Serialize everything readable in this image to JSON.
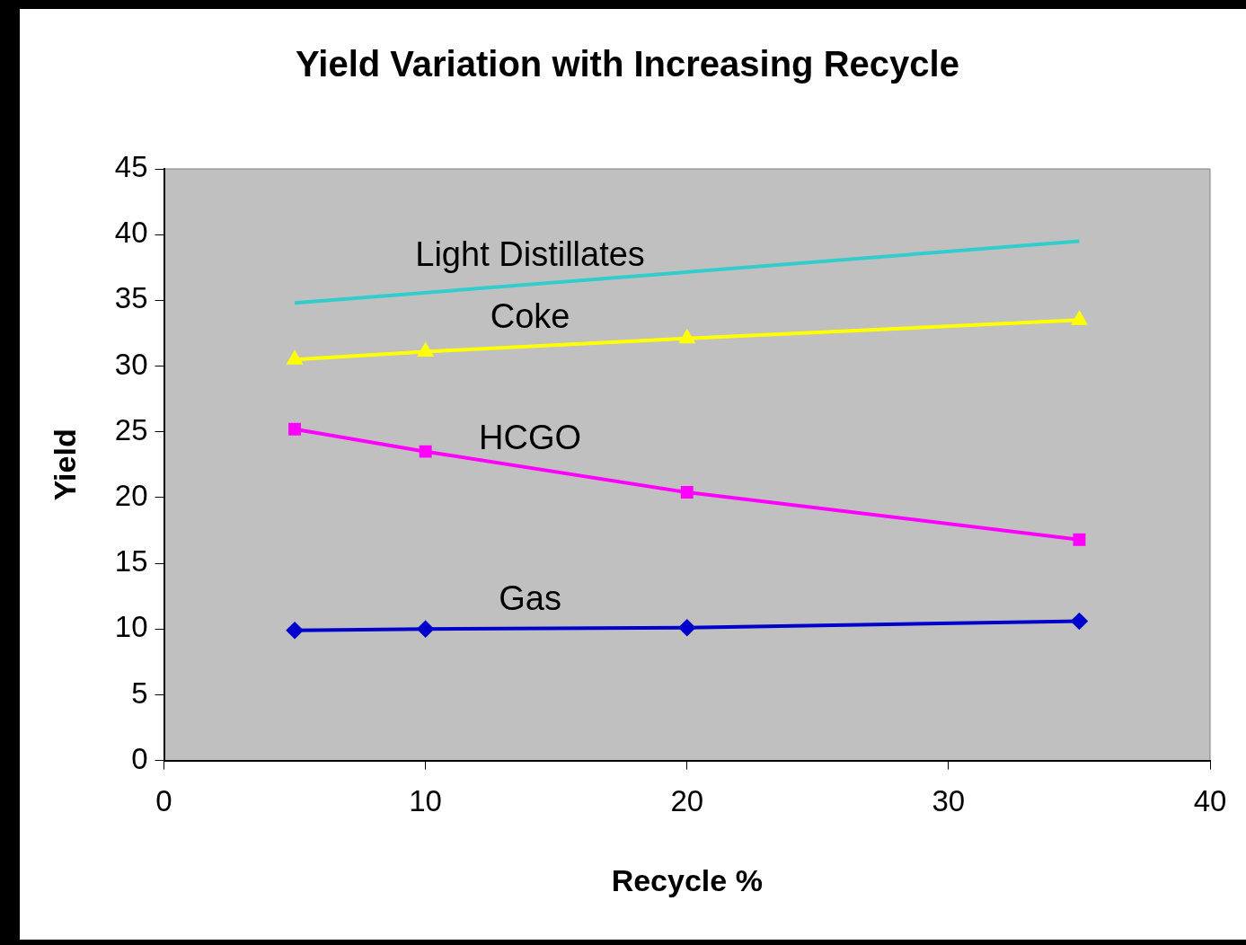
{
  "chart_data": {
    "type": "line",
    "title": "Yield Variation with Increasing Recycle",
    "xlabel": "Recycle %",
    "ylabel": "Yield",
    "xlim": [
      0,
      40
    ],
    "xticks": [
      0,
      10,
      20,
      30,
      40
    ],
    "ylim": [
      0,
      45
    ],
    "yticks": [
      0,
      5,
      10,
      15,
      20,
      25,
      30,
      35,
      40,
      45
    ],
    "grid": false,
    "legend": false,
    "series": [
      {
        "name": "Light Distillates",
        "color": "#33cccc",
        "marker": "none",
        "x": [
          5,
          35
        ],
        "values": [
          34.8,
          39.5
        ]
      },
      {
        "name": "Coke",
        "color": "#ffff00",
        "marker": "triangle",
        "x": [
          5,
          10,
          20,
          35
        ],
        "values": [
          30.5,
          31.1,
          32.1,
          33.5
        ]
      },
      {
        "name": "HCGO",
        "color": "#ff00ff",
        "marker": "square",
        "x": [
          5,
          10,
          20,
          35
        ],
        "values": [
          25.2,
          23.5,
          20.4,
          16.8
        ]
      },
      {
        "name": "Gas",
        "color": "#0000cc",
        "marker": "diamond",
        "x": [
          5,
          10,
          20,
          35
        ],
        "values": [
          9.9,
          10.0,
          10.1,
          10.6
        ]
      }
    ]
  }
}
